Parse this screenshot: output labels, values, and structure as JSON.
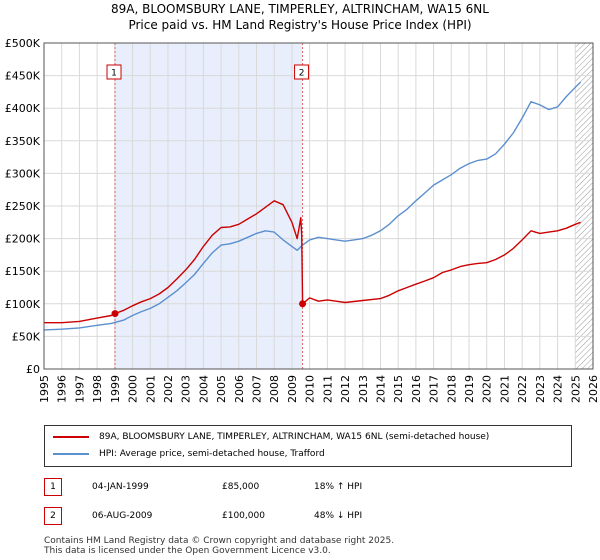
{
  "chart_data": {
    "type": "line",
    "title": "89A, BLOOMSBURY LANE, TIMPERLEY, ALTRINCHAM, WA15 6NL",
    "subtitle": "Price paid vs. HM Land Registry's House Price Index (HPI)",
    "xlim": [
      1995,
      2026
    ],
    "ylim": [
      0,
      500000
    ],
    "x_ticks": [
      1995,
      1996,
      1997,
      1998,
      1999,
      2000,
      2001,
      2002,
      2003,
      2004,
      2005,
      2006,
      2007,
      2008,
      2009,
      2010,
      2011,
      2012,
      2013,
      2014,
      2015,
      2016,
      2017,
      2018,
      2019,
      2020,
      2021,
      2022,
      2023,
      2024,
      2025,
      2026
    ],
    "y_ticks": [
      0,
      50000,
      100000,
      150000,
      200000,
      250000,
      300000,
      350000,
      400000,
      450000,
      500000
    ],
    "y_tick_labels": [
      "£0",
      "£50K",
      "£100K",
      "£150K",
      "£200K",
      "£250K",
      "£300K",
      "£350K",
      "£400K",
      "£450K",
      "£500K"
    ],
    "grid": true,
    "shaded_region": [
      1999.01,
      2009.6
    ],
    "future_hatch_from": 2025.0,
    "series": [
      {
        "name": "89A, BLOOMSBURY LANE, TIMPERLEY, ALTRINCHAM, WA15 6NL (semi-detached house)",
        "color": "#cc0000",
        "x": [
          1995,
          1996,
          1997,
          1998,
          1998.8,
          1999.01,
          1999.5,
          2000,
          2000.5,
          2001,
          2001.5,
          2002,
          2002.5,
          2003,
          2003.5,
          2004,
          2004.5,
          2005,
          2005.5,
          2006,
          2006.5,
          2007,
          2007.5,
          2008,
          2008.5,
          2009,
          2009.3,
          2009.5,
          2009.55,
          2009.6,
          2010,
          2010.5,
          2011,
          2011.5,
          2012,
          2013,
          2014,
          2014.5,
          2015,
          2015.5,
          2016,
          2016.5,
          2017,
          2017.5,
          2018,
          2018.5,
          2019,
          2019.5,
          2020,
          2020.5,
          2021,
          2021.5,
          2022,
          2022.5,
          2023,
          2023.5,
          2024,
          2024.5,
          2025,
          2025.3
        ],
        "values": [
          71000,
          71000,
          73000,
          78000,
          82000,
          85000,
          90000,
          97000,
          103000,
          108000,
          115000,
          125000,
          138000,
          152000,
          168000,
          188000,
          205000,
          217000,
          218000,
          222000,
          230000,
          238000,
          248000,
          258000,
          252000,
          225000,
          200000,
          232000,
          205000,
          100000,
          109000,
          104000,
          106000,
          104000,
          102000,
          105000,
          108000,
          113000,
          120000,
          125000,
          130000,
          135000,
          140000,
          148000,
          152000,
          157000,
          160000,
          162000,
          163000,
          168000,
          175000,
          185000,
          198000,
          212000,
          208000,
          210000,
          212000,
          216000,
          222000,
          225000
        ]
      },
      {
        "name": "HPI: Average price, semi-detached house, Trafford",
        "color": "#5b8fd0",
        "x": [
          1995,
          1996,
          1997,
          1998,
          1998.8,
          1999.5,
          2000,
          2000.5,
          2001,
          2001.5,
          2002,
          2002.5,
          2003,
          2003.5,
          2004,
          2004.5,
          2005,
          2005.5,
          2006,
          2006.5,
          2007,
          2007.5,
          2008,
          2008.5,
          2009,
          2009.3,
          2009.6,
          2010,
          2010.5,
          2011,
          2011.5,
          2012,
          2012.5,
          2013,
          2013.5,
          2014,
          2014.5,
          2015,
          2015.5,
          2016,
          2016.5,
          2017,
          2017.5,
          2018,
          2018.5,
          2019,
          2019.5,
          2020,
          2020.5,
          2021,
          2021.5,
          2022,
          2022.5,
          2023,
          2023.5,
          2024,
          2024.5,
          2025,
          2025.3
        ],
        "values": [
          60000,
          61000,
          63000,
          67000,
          70000,
          75000,
          82000,
          88000,
          93000,
          100000,
          110000,
          120000,
          132000,
          145000,
          162000,
          178000,
          190000,
          192000,
          196000,
          202000,
          208000,
          212000,
          210000,
          198000,
          188000,
          182000,
          190000,
          198000,
          202000,
          200000,
          198000,
          196000,
          198000,
          200000,
          205000,
          212000,
          222000,
          235000,
          245000,
          258000,
          270000,
          282000,
          290000,
          298000,
          308000,
          315000,
          320000,
          322000,
          330000,
          345000,
          362000,
          385000,
          410000,
          405000,
          398000,
          402000,
          418000,
          432000,
          440000
        ]
      }
    ],
    "sale_markers": [
      {
        "label": "1",
        "x": 1999.01,
        "value": 85000
      },
      {
        "label": "2",
        "x": 2009.6,
        "value": 100000
      }
    ]
  },
  "legend": {
    "items": [
      {
        "label": "89A, BLOOMSBURY LANE, TIMPERLEY, ALTRINCHAM, WA15 6NL (semi-detached house)",
        "color": "#cc0000"
      },
      {
        "label": "HPI: Average price, semi-detached house, Trafford",
        "color": "#5b8fd0"
      }
    ]
  },
  "sales": [
    {
      "num": "1",
      "date": "04-JAN-1999",
      "price": "£85,000",
      "hpi": "18% ↑ HPI"
    },
    {
      "num": "2",
      "date": "06-AUG-2009",
      "price": "£100,000",
      "hpi": "48% ↓ HPI"
    }
  ],
  "footer": {
    "line1": "Contains HM Land Registry data © Crown copyright and database right 2025.",
    "line2": "This data is licensed under the Open Government Licence v3.0."
  }
}
